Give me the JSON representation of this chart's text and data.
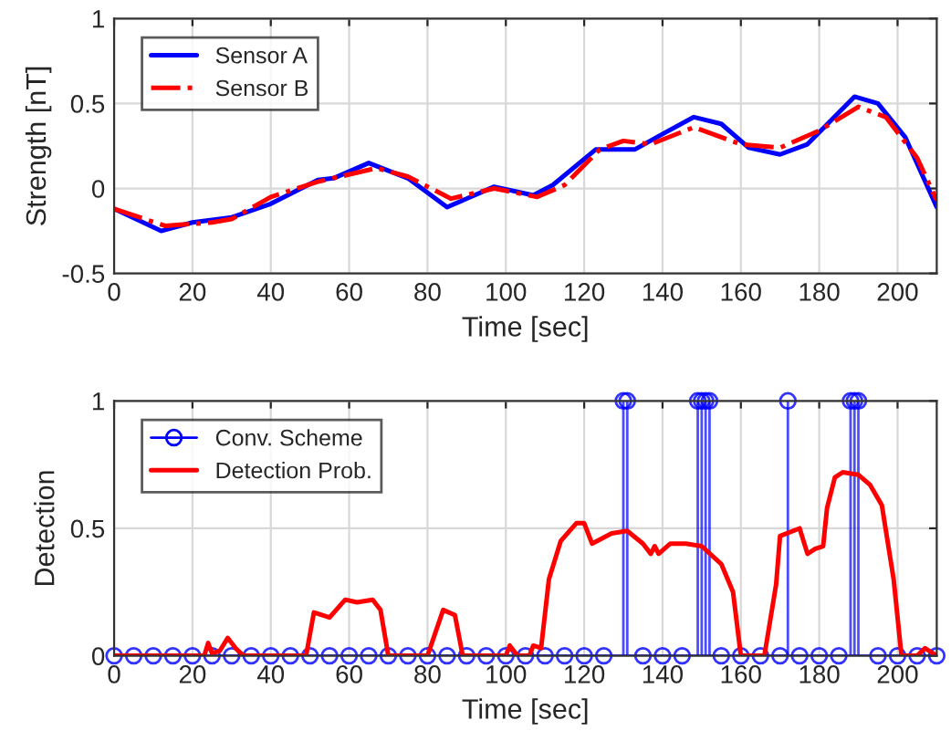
{
  "chart_data": [
    {
      "type": "line",
      "xlabel": "Time [sec]",
      "ylabel": "Strength [nT]",
      "xlim": [
        0,
        210
      ],
      "ylim": [
        -0.5,
        1
      ],
      "xticks": [
        0,
        20,
        40,
        60,
        80,
        100,
        120,
        140,
        160,
        180,
        200
      ],
      "yticks": [
        -0.5,
        0,
        0.5,
        1
      ],
      "grid": true,
      "legend": "top left",
      "series": [
        {
          "name": "Sensor A",
          "color": "#0000ff",
          "line_style": "solid",
          "x": [
            0,
            12,
            20,
            30,
            40,
            52,
            56,
            65,
            75,
            85,
            97,
            107,
            112,
            123,
            133,
            140,
            148,
            155,
            162,
            170,
            177,
            189,
            195,
            202,
            210
          ],
          "values": [
            -0.12,
            -0.25,
            -0.2,
            -0.17,
            -0.09,
            0.05,
            0.06,
            0.15,
            0.06,
            -0.11,
            0.01,
            -0.04,
            0.02,
            0.23,
            0.23,
            0.32,
            0.42,
            0.38,
            0.24,
            0.2,
            0.26,
            0.54,
            0.5,
            0.3,
            -0.11
          ]
        },
        {
          "name": "Sensor B",
          "color": "#ff0000",
          "line_style": "dashdot",
          "x": [
            0,
            13,
            25,
            30,
            40,
            52,
            67,
            75,
            86,
            97,
            108,
            115,
            124,
            130,
            137,
            148,
            160,
            170,
            180,
            190,
            197,
            205,
            210
          ],
          "values": [
            -0.12,
            -0.22,
            -0.2,
            -0.18,
            -0.05,
            0.04,
            0.12,
            0.07,
            -0.06,
            0.0,
            -0.05,
            0.02,
            0.23,
            0.28,
            0.26,
            0.36,
            0.26,
            0.24,
            0.34,
            0.48,
            0.42,
            0.18,
            -0.07
          ]
        }
      ]
    },
    {
      "type": "line",
      "xlabel": "Time [sec]",
      "ylabel": "Detection",
      "xlim": [
        0,
        210
      ],
      "ylim": [
        0,
        1
      ],
      "xticks": [
        0,
        20,
        40,
        60,
        80,
        100,
        120,
        140,
        160,
        180,
        200
      ],
      "yticks": [
        0,
        0.5,
        1
      ],
      "grid": true,
      "legend": "top left",
      "series": [
        {
          "name": "Conv. Scheme",
          "type": "lollipop",
          "color": "#0000ff",
          "marker": "circle",
          "x": [
            0,
            5,
            10,
            15,
            20,
            25,
            30,
            35,
            40,
            45,
            50,
            55,
            60,
            65,
            70,
            75,
            80,
            85,
            90,
            95,
            100,
            105,
            110,
            115,
            120,
            125,
            130,
            131,
            135,
            140,
            145,
            149,
            150,
            151,
            152,
            155,
            160,
            165,
            170,
            172,
            175,
            180,
            185,
            188,
            189,
            190,
            195,
            200,
            205,
            210
          ],
          "values": [
            0,
            0,
            0,
            0,
            0,
            0,
            0,
            0,
            0,
            0,
            0,
            0,
            0,
            0,
            0,
            0,
            0,
            0,
            0,
            0,
            0,
            0,
            0,
            0,
            0,
            0,
            1,
            1,
            0,
            0,
            0,
            1,
            1,
            1,
            1,
            0,
            0,
            0,
            0,
            1,
            0,
            0,
            0,
            1,
            1,
            1,
            0,
            0,
            0,
            0
          ]
        },
        {
          "name": "Detection Prob.",
          "color": "#ff0000",
          "line_style": "solid",
          "x": [
            0,
            23,
            24,
            25,
            27,
            29,
            31,
            33,
            49,
            51,
            55,
            59,
            62,
            66,
            68,
            70,
            80,
            84,
            87,
            89,
            100,
            101,
            103,
            106,
            107,
            109,
            111,
            114,
            118,
            120,
            122,
            127,
            131,
            135,
            137,
            138,
            139,
            142,
            146,
            150,
            155,
            158,
            160,
            166,
            169,
            170,
            175,
            177,
            179,
            181,
            182,
            184,
            186,
            190,
            193,
            196,
            199,
            201,
            205,
            207,
            210
          ],
          "values": [
            0,
            0,
            0.05,
            0.01,
            0.02,
            0.07,
            0.03,
            0,
            0,
            0.17,
            0.15,
            0.22,
            0.21,
            0.22,
            0.18,
            0,
            0,
            0.18,
            0.16,
            0,
            0,
            0.04,
            0,
            0,
            0.04,
            0.03,
            0.3,
            0.45,
            0.52,
            0.52,
            0.44,
            0.48,
            0.49,
            0.44,
            0.4,
            0.43,
            0.4,
            0.44,
            0.44,
            0.43,
            0.36,
            0.25,
            0,
            0,
            0.28,
            0.47,
            0.5,
            0.4,
            0.42,
            0.43,
            0.58,
            0.7,
            0.72,
            0.71,
            0.67,
            0.59,
            0.3,
            0,
            0,
            0.03,
            0
          ]
        }
      ]
    }
  ]
}
